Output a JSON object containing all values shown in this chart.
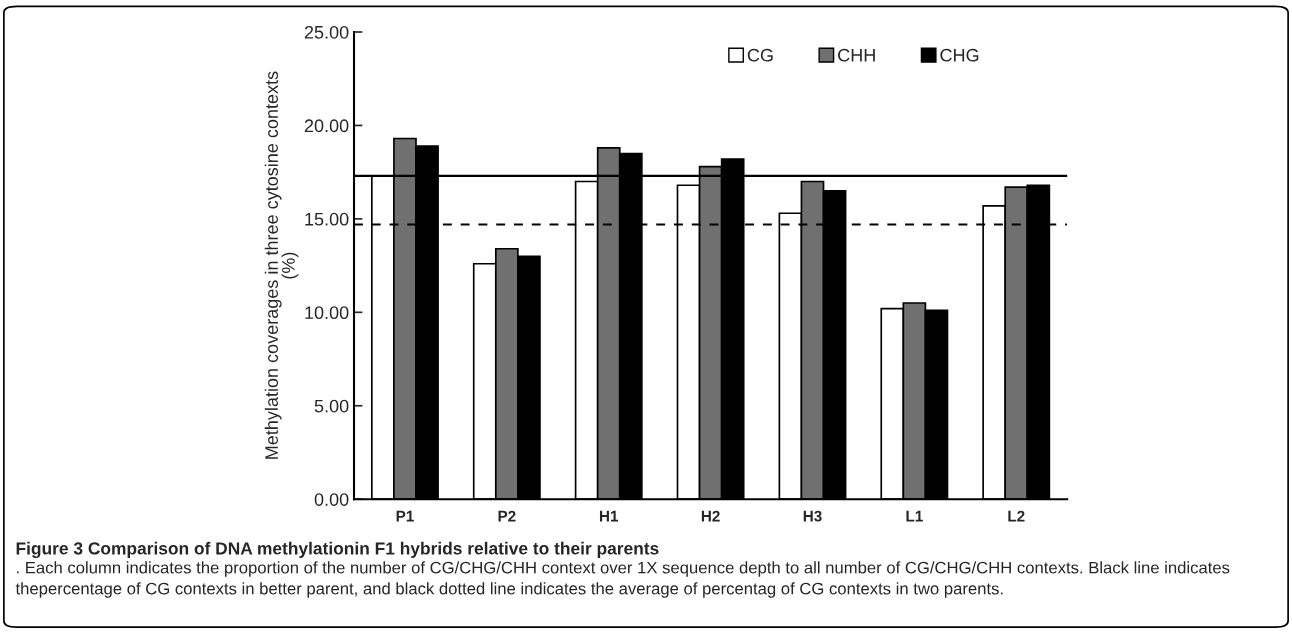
{
  "chart_data": {
    "type": "bar",
    "title": "Figure 3 Comparison of DNA methylationin F1 hybrids relative to their parents",
    "ylabel": "Methylation coverages in three cytosine contexts\n(%)",
    "categories": [
      "P1",
      "P2",
      "H1",
      "H2",
      "H3",
      "L1",
      "L2"
    ],
    "series": [
      {
        "name": "CG",
        "color": "#ffffff",
        "values": [
          17.3,
          12.6,
          17.0,
          16.8,
          15.3,
          10.2,
          15.7
        ]
      },
      {
        "name": "CHH",
        "color": "#707070",
        "values": [
          19.3,
          13.4,
          18.8,
          17.8,
          17.0,
          10.5,
          16.7
        ]
      },
      {
        "name": "CHG",
        "color": "#000000",
        "values": [
          18.9,
          13.0,
          18.5,
          18.2,
          16.5,
          10.1,
          16.8
        ]
      }
    ],
    "ylim": [
      0,
      25
    ],
    "yticks": [
      {
        "value": 0,
        "label": "0.00"
      },
      {
        "value": 5,
        "label": "5.00"
      },
      {
        "value": 10,
        "label": "10.00"
      },
      {
        "value": 15,
        "label": "15.00"
      },
      {
        "value": 20,
        "label": "20.00"
      },
      {
        "value": 25,
        "label": "25.00"
      }
    ],
    "ref_lines": [
      {
        "axis": "y",
        "value": 17.3,
        "color": "#000000",
        "line_style": "solid"
      },
      {
        "axis": "y",
        "value": 14.7,
        "color": "#000000",
        "line_style": "dashed"
      }
    ],
    "annotations": [
      ". Each column indicates the proportion of the number of CG/CHG/CHH context over 1X sequence depth to all number of CG/CHG/CHH contexts. Black line indicates thepercentage of CG contexts in better parent, and black dotted line indicates the average of percentag of CG contexts in two parents."
    ],
    "legend": "top right",
    "grid": false
  }
}
